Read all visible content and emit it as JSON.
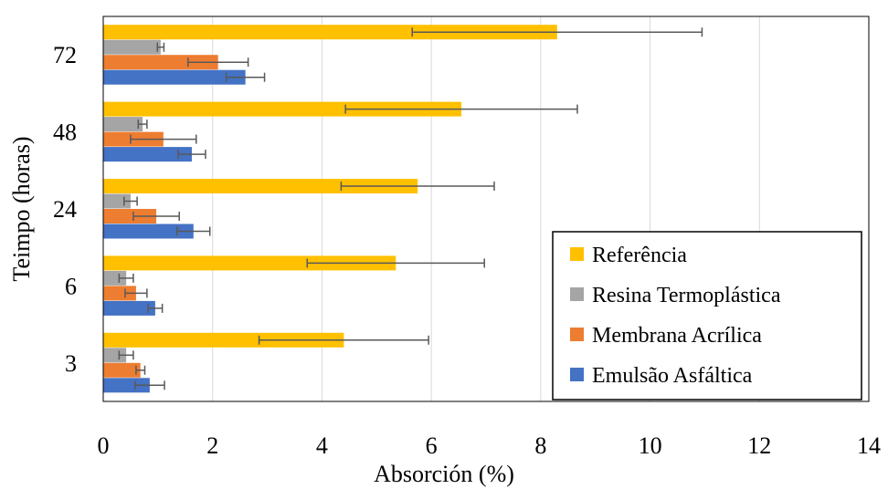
{
  "chart_data": {
    "type": "bar",
    "orientation": "horizontal",
    "categories": [
      "3",
      "6",
      "24",
      "48",
      "72"
    ],
    "series": [
      {
        "name": "Emulsão Asfáltica",
        "color": "#4472C4",
        "values": [
          0.85,
          0.95,
          1.65,
          1.62,
          2.6
        ],
        "errors": [
          0.27,
          0.13,
          0.3,
          0.25,
          0.35
        ]
      },
      {
        "name": "Membrana Acrílica",
        "color": "#ED7D31",
        "values": [
          0.68,
          0.6,
          0.97,
          1.1,
          2.1
        ],
        "errors": [
          0.08,
          0.2,
          0.42,
          0.6,
          0.55
        ]
      },
      {
        "name": "Resina Termoplástica",
        "color": "#A5A5A5",
        "values": [
          0.42,
          0.42,
          0.5,
          0.72,
          1.05
        ],
        "errors": [
          0.13,
          0.13,
          0.12,
          0.08,
          0.06
        ]
      },
      {
        "name": "Referência",
        "color": "#FFC000",
        "values": [
          4.4,
          5.35,
          5.75,
          6.55,
          8.3
        ],
        "errors": [
          1.55,
          1.62,
          1.4,
          2.12,
          2.65
        ]
      }
    ],
    "xlabel": "Absorción (%)",
    "ylabel": "Teimpo (horas)",
    "xlim": [
      0,
      14
    ],
    "xticks": [
      "0",
      "2",
      "4",
      "6",
      "8",
      "10",
      "12",
      "14"
    ],
    "grid": "vertical",
    "legend_position": "bottom-right",
    "legend_order": [
      "Referência",
      "Resina Termoplástica",
      "Membrana Acrílica",
      "Emulsão Asfáltica"
    ]
  }
}
